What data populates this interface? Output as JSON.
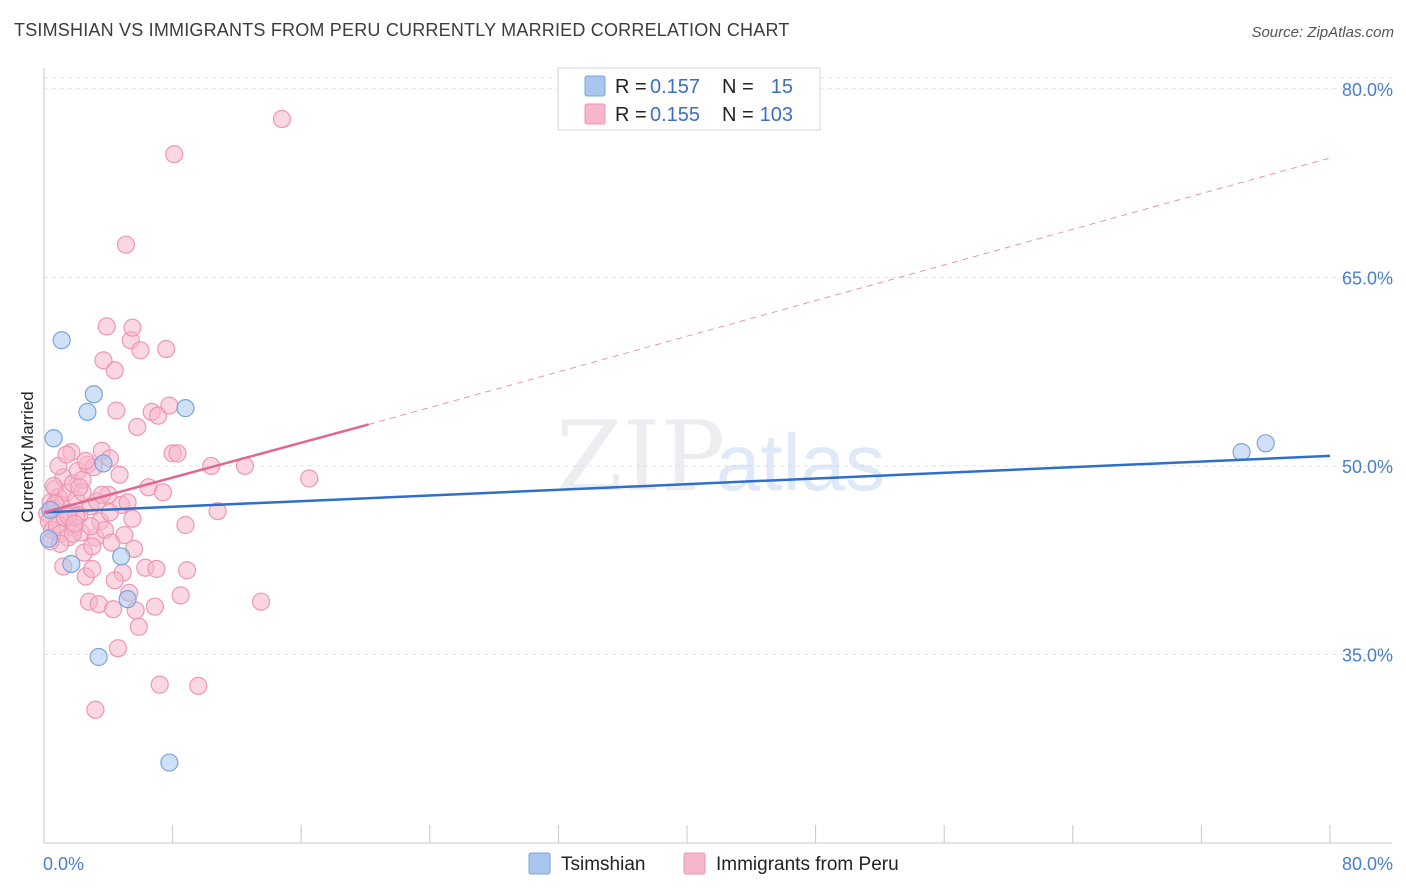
{
  "title": "TSIMSHIAN VS IMMIGRANTS FROM PERU CURRENTLY MARRIED CORRELATION CHART",
  "source": "Source: ZipAtlas.com",
  "watermark": {
    "zip": "ZIP",
    "atlas": "atlas"
  },
  "legend_top": {
    "r_label": "R =",
    "n_label": "N =",
    "rows": [
      {
        "r": "0.157",
        "n": "15",
        "color": "#a9c6ee"
      },
      {
        "r": "0.155",
        "n": "103",
        "color": "#f6b7cb"
      }
    ]
  },
  "legend_bottom": [
    {
      "label": "Tsimshian",
      "color": "#a9c6ee"
    },
    {
      "label": "Immigrants from Peru",
      "color": "#f6b7cb"
    }
  ],
  "chart_data": {
    "type": "scatter",
    "ylabel": "Currently Married",
    "xlim": [
      0,
      80
    ],
    "ylim": [
      20,
      81.5
    ],
    "x_ticks": [
      "0.0%",
      "80.0%"
    ],
    "y_ticks": [
      {
        "value": 35,
        "label": "35.0%"
      },
      {
        "value": 50,
        "label": "50.0%"
      },
      {
        "value": 65,
        "label": "65.0%"
      },
      {
        "value": 80,
        "label": "80.0%"
      }
    ],
    "grid": true,
    "series": [
      {
        "name": "Tsimshian",
        "color": "#a9c6ee",
        "stroke": "#7ba4dc",
        "trend_color": "#2e6fcb",
        "trend": {
          "x1": 0,
          "y1": 46.3,
          "x2": 80,
          "y2": 50.8
        },
        "points": [
          [
            0.3,
            44.2
          ],
          [
            0.6,
            52.2
          ],
          [
            1.1,
            60.0
          ],
          [
            1.7,
            42.2
          ],
          [
            2.7,
            54.3
          ],
          [
            3.1,
            55.7
          ],
          [
            3.4,
            34.8
          ],
          [
            3.7,
            50.2
          ],
          [
            4.8,
            42.8
          ],
          [
            5.2,
            39.4
          ],
          [
            7.8,
            26.4
          ],
          [
            8.8,
            54.6
          ],
          [
            74.5,
            51.1
          ],
          [
            76.0,
            51.8
          ],
          [
            0.4,
            46.5
          ]
        ]
      },
      {
        "name": "Immigrants from Peru",
        "color": "#f6b7cb",
        "stroke": "#ee97b3",
        "trend_color": "#e06790",
        "trend": {
          "x1": 0,
          "y1": 46.3,
          "x2": 20.2,
          "y2": 53.3
        },
        "trend_ext": {
          "x1": 20.2,
          "y1": 53.3,
          "x2": 80,
          "y2": 74.5
        },
        "points": [
          [
            0.2,
            46.2
          ],
          [
            0.3,
            45.6
          ],
          [
            0.4,
            47.1
          ],
          [
            0.5,
            44.9
          ],
          [
            0.6,
            46.6
          ],
          [
            0.7,
            48.2
          ],
          [
            0.8,
            45.3
          ],
          [
            0.9,
            47.5
          ],
          [
            1.0,
            44.6
          ],
          [
            1.1,
            46.9
          ],
          [
            1.2,
            49.1
          ],
          [
            1.3,
            45.9
          ],
          [
            1.4,
            47.9
          ],
          [
            1.5,
            44.3
          ],
          [
            1.6,
            46.3
          ],
          [
            1.7,
            51.1
          ],
          [
            1.8,
            48.6
          ],
          [
            1.9,
            45.1
          ],
          [
            2.0,
            47.3
          ],
          [
            2.1,
            49.6
          ],
          [
            2.2,
            46.1
          ],
          [
            2.3,
            44.7
          ],
          [
            2.4,
            48.9
          ],
          [
            2.5,
            43.1
          ],
          [
            2.6,
            41.2
          ],
          [
            2.7,
            50.1
          ],
          [
            2.8,
            39.2
          ],
          [
            2.9,
            46.8
          ],
          [
            3.0,
            41.8
          ],
          [
            3.1,
            49.9
          ],
          [
            3.2,
            44.3
          ],
          [
            3.3,
            47.2
          ],
          [
            3.4,
            39.0
          ],
          [
            3.5,
            45.6
          ],
          [
            3.6,
            51.2
          ],
          [
            3.7,
            58.4
          ],
          [
            3.8,
            44.9
          ],
          [
            3.9,
            61.1
          ],
          [
            4.0,
            47.7
          ],
          [
            4.1,
            50.6
          ],
          [
            4.2,
            43.9
          ],
          [
            4.3,
            38.6
          ],
          [
            4.4,
            57.6
          ],
          [
            4.5,
            54.4
          ],
          [
            4.6,
            35.5
          ],
          [
            4.7,
            49.3
          ],
          [
            4.8,
            46.9
          ],
          [
            4.9,
            41.5
          ],
          [
            5.0,
            44.5
          ],
          [
            5.1,
            67.6
          ],
          [
            5.2,
            47.1
          ],
          [
            5.3,
            39.9
          ],
          [
            5.4,
            60.0
          ],
          [
            5.5,
            61.0
          ],
          [
            5.6,
            43.4
          ],
          [
            5.7,
            38.5
          ],
          [
            5.8,
            53.1
          ],
          [
            5.9,
            37.2
          ],
          [
            6.0,
            59.2
          ],
          [
            6.3,
            41.9
          ],
          [
            6.5,
            48.3
          ],
          [
            6.7,
            54.3
          ],
          [
            6.9,
            38.8
          ],
          [
            7.0,
            41.8
          ],
          [
            7.1,
            54.0
          ],
          [
            7.2,
            32.6
          ],
          [
            7.4,
            47.9
          ],
          [
            7.6,
            59.3
          ],
          [
            7.8,
            54.8
          ],
          [
            8.0,
            51.0
          ],
          [
            8.1,
            74.8
          ],
          [
            8.3,
            51.0
          ],
          [
            8.5,
            39.7
          ],
          [
            8.8,
            45.3
          ],
          [
            8.9,
            41.7
          ],
          [
            9.6,
            32.5
          ],
          [
            10.4,
            50.0
          ],
          [
            10.8,
            46.4
          ],
          [
            12.5,
            50.0
          ],
          [
            13.5,
            39.2
          ],
          [
            14.8,
            77.6
          ],
          [
            16.5,
            49.0
          ],
          [
            0.9,
            50.0
          ],
          [
            1.8,
            44.6
          ],
          [
            2.4,
            47.9
          ],
          [
            3.2,
            30.6
          ],
          [
            1.2,
            42.0
          ],
          [
            2.0,
            46.0
          ],
          [
            0.6,
            48.4
          ],
          [
            1.4,
            50.9
          ],
          [
            2.9,
            45.2
          ],
          [
            3.6,
            47.7
          ],
          [
            4.4,
            40.9
          ],
          [
            1.0,
            43.8
          ],
          [
            0.7,
            47.0
          ],
          [
            2.2,
            48.3
          ],
          [
            3.0,
            43.6
          ],
          [
            4.1,
            46.3
          ],
          [
            1.5,
            46.0
          ],
          [
            2.6,
            50.4
          ],
          [
            0.4,
            44.0
          ],
          [
            1.9,
            45.4
          ],
          [
            5.5,
            45.8
          ]
        ]
      }
    ]
  }
}
